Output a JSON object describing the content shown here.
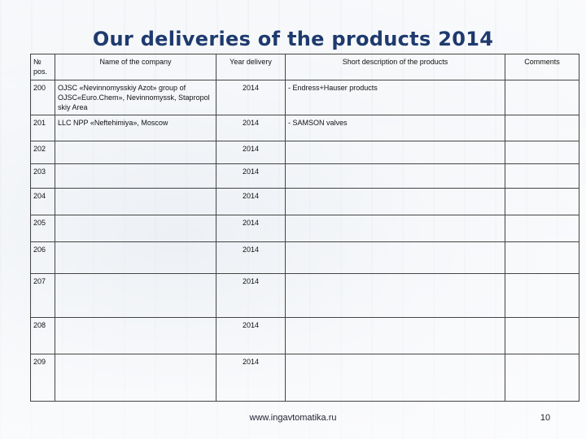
{
  "slide": {
    "title": "Our deliveries of the products 2014",
    "footer_url": "www.ingavtomatika.ru",
    "page_number": "10"
  },
  "table": {
    "headers": {
      "pos": "№ pos.",
      "company": "Name of the company",
      "year": "Year delivery",
      "description": "Short description of the products",
      "comments": "Comments"
    },
    "rows": [
      {
        "pos": "200",
        "company": "OJSC «Nevinnomysskiy Azot» group of OJSC«Euro.Chem», Nevinnomyssk, Stapropol skiy Area",
        "year": "2014",
        "description": "- Endress+Hauser products",
        "comments": ""
      },
      {
        "pos": "201",
        "company": "LLC NPP «Neftehimiya», Moscow",
        "year": "2014",
        "description": "- SAMSON valves",
        "comments": ""
      },
      {
        "pos": "202",
        "company": "",
        "year": "2014",
        "description": "",
        "comments": ""
      },
      {
        "pos": "203",
        "company": "",
        "year": "2014",
        "description": "",
        "comments": ""
      },
      {
        "pos": "204",
        "company": "",
        "year": "2014",
        "description": "",
        "comments": ""
      },
      {
        "pos": "205",
        "company": "",
        "year": "2014",
        "description": "",
        "comments": ""
      },
      {
        "pos": "206",
        "company": "",
        "year": "2014",
        "description": "",
        "comments": ""
      },
      {
        "pos": "207",
        "company": "",
        "year": "2014",
        "description": "",
        "comments": ""
      },
      {
        "pos": "208",
        "company": "",
        "year": "2014",
        "description": "",
        "comments": ""
      },
      {
        "pos": "209",
        "company": "",
        "year": "2014",
        "description": "",
        "comments": ""
      }
    ]
  }
}
